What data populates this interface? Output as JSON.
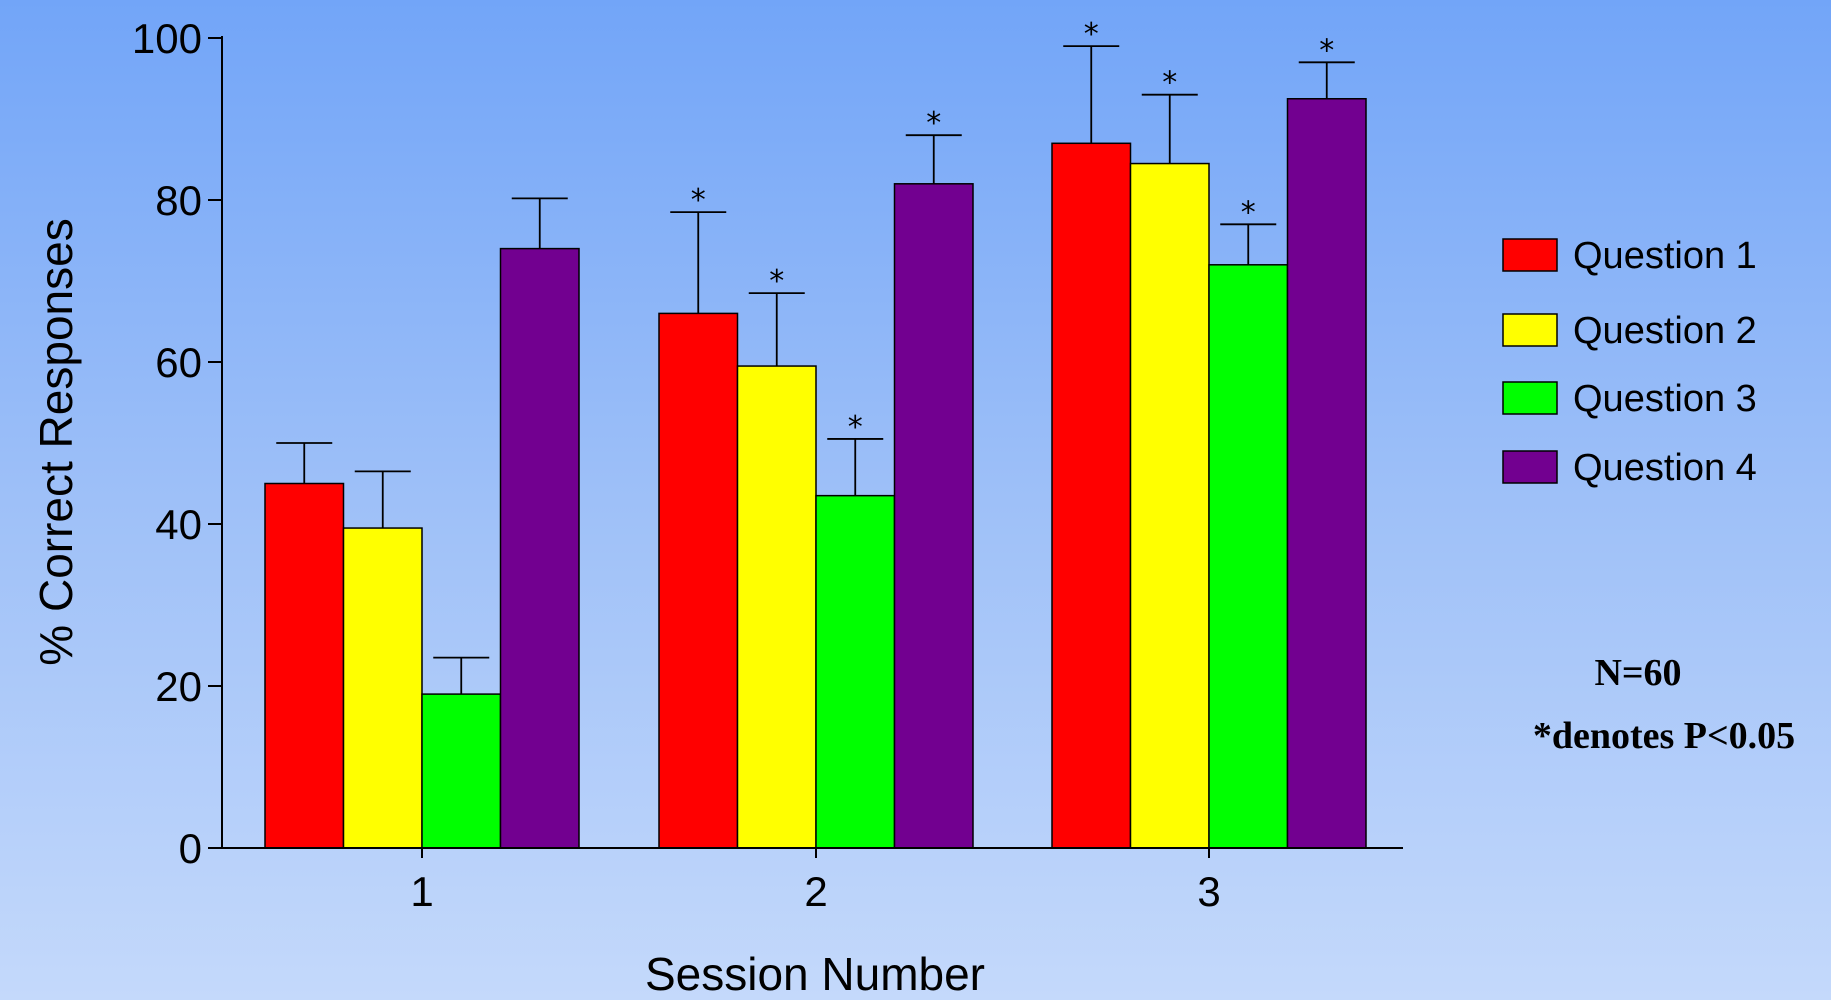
{
  "chart_data": {
    "type": "bar",
    "title": "",
    "xlabel": "Session Number",
    "ylabel": "% Correct Responses",
    "ylim": [
      0,
      100
    ],
    "yticks": [
      "0",
      "20",
      "40",
      "60",
      "80",
      "100"
    ],
    "categories": [
      "1",
      "2",
      "3"
    ],
    "grid": false,
    "legend_position": "right",
    "series": [
      {
        "name": "Question 1",
        "color": "#ff0000",
        "values": [
          45,
          66,
          87
        ],
        "error": [
          5,
          12.5,
          12
        ],
        "significant": [
          false,
          true,
          true
        ]
      },
      {
        "name": "Question 2",
        "color": "#ffff00",
        "values": [
          39.5,
          59.5,
          84.5
        ],
        "error": [
          7,
          9,
          8.5
        ],
        "significant": [
          false,
          true,
          true
        ]
      },
      {
        "name": "Question 3",
        "color": "#00ff00",
        "values": [
          19,
          43.5,
          72
        ],
        "error": [
          4.5,
          7,
          5
        ],
        "significant": [
          false,
          true,
          true
        ]
      },
      {
        "name": "Question 4",
        "color": "#720090",
        "values": [
          74,
          82,
          92.5
        ],
        "error": [
          6.2,
          6,
          4.5
        ],
        "significant": [
          false,
          true,
          true
        ]
      }
    ],
    "significance_marker": "*",
    "annotations": [
      "N=60",
      "*denotes P<0.05"
    ]
  }
}
